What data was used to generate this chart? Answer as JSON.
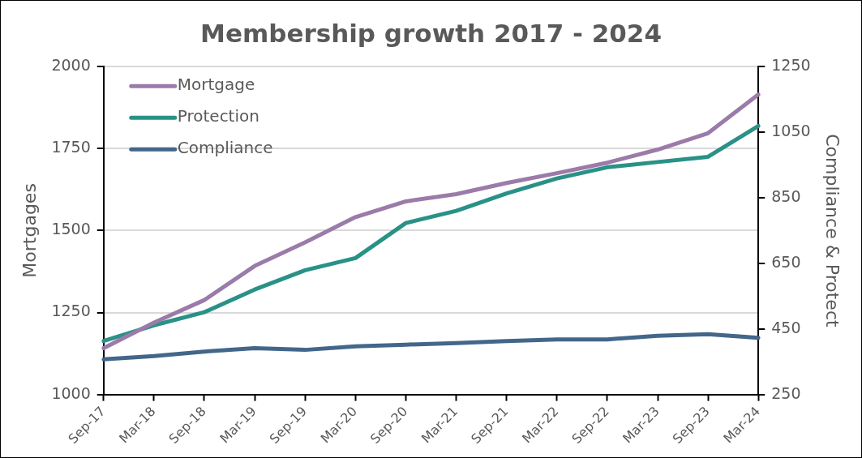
{
  "chart_data": {
    "type": "line",
    "title": "Membership growth 2017 - 2024",
    "ylabel": "Mortgages",
    "y2label": "Compliance & Protect",
    "categories": [
      "Sep-17",
      "Mar-18",
      "Sep-18",
      "Mar-19",
      "Sep-19",
      "Mar-20",
      "Sep-20",
      "Mar-21",
      "Sep-21",
      "Mar-22",
      "Sep-22",
      "Mar-23",
      "Sep-23",
      "Mar-24"
    ],
    "series": [
      {
        "name": "Mortgage",
        "color": "#9b7baa",
        "values": [
          1141,
          1219,
          1288,
          1392,
          1464,
          1541,
          1589,
          1611,
          1645,
          1675,
          1707,
          1747,
          1797,
          1915
        ]
      },
      {
        "name": "Protection",
        "color": "#2a9187",
        "axis": "y2",
        "values": [
          413,
          461,
          501,
          570,
          629,
          666,
          773,
          810,
          863,
          909,
          943,
          959,
          975,
          1069
        ]
      },
      {
        "name": "Compliance",
        "color": "#43668b",
        "axis": "y2",
        "values": [
          357,
          367,
          381,
          391,
          386,
          397,
          402,
          407,
          413,
          418,
          418,
          429,
          434,
          423
        ]
      }
    ],
    "ylim": [
      1000,
      2000
    ],
    "yticks": [
      1000,
      1250,
      1500,
      1750,
      2000
    ],
    "y2lim": [
      250,
      1250
    ],
    "y2ticks": [
      250,
      450,
      650,
      850,
      1050,
      1250
    ],
    "grid": "y",
    "legend": "top left",
    "marker": "none",
    "line_style": "solid"
  }
}
